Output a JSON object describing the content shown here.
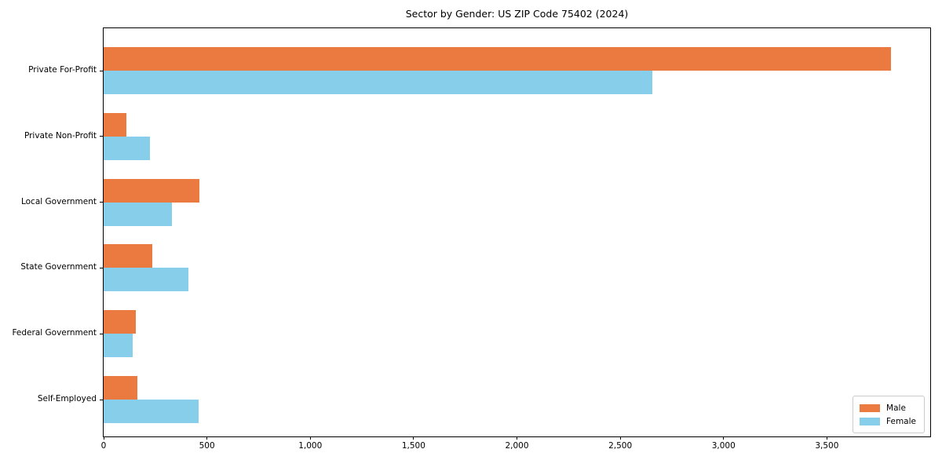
{
  "chart_data": {
    "type": "bar",
    "orientation": "horizontal",
    "title": "Sector by Gender: US ZIP Code 75402 (2024)",
    "categories": [
      "Private For-Profit",
      "Private Non-Profit",
      "Local Government",
      "State Government",
      "Federal Government",
      "Self-Employed"
    ],
    "series": [
      {
        "name": "Male",
        "color": "#ea7a3f",
        "values": [
          3810,
          110,
          465,
          235,
          155,
          165
        ]
      },
      {
        "name": "Female",
        "color": "#87ceeb",
        "values": [
          2655,
          225,
          330,
          410,
          140,
          460
        ]
      }
    ],
    "xlabel": "",
    "ylabel": "",
    "xlim": [
      0,
      4000
    ],
    "x_tick_values": [
      0,
      500,
      1000,
      1500,
      2000,
      2500,
      3000,
      3500
    ],
    "x_tick_labels": [
      "0",
      "500",
      "1,000",
      "1,500",
      "2,000",
      "2,500",
      "3,000",
      "3,500"
    ],
    "legend": {
      "position": "lower right"
    },
    "grid": false,
    "colors": {
      "background": "#ffffff",
      "spine": "#000000",
      "legend_border": "#cccccc"
    }
  }
}
